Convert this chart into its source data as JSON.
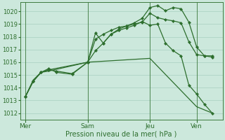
{
  "background_color": "#cce8dc",
  "grid_color": "#a8cfc0",
  "line_color": "#2d6e2d",
  "xlabel": "Pression niveau de la mer( hPa )",
  "ylim": [
    1011.5,
    1020.7
  ],
  "yticks": [
    1012,
    1013,
    1014,
    1015,
    1016,
    1017,
    1018,
    1019,
    1020
  ],
  "day_labels": [
    "Mer",
    "Sam",
    "Jeu",
    "Ven"
  ],
  "day_positions": [
    0,
    24,
    48,
    66
  ],
  "xlim": [
    -2,
    76
  ],
  "series": [
    {
      "x": [
        0,
        3,
        6,
        9,
        12,
        18,
        24,
        27,
        30,
        33,
        36,
        39,
        42,
        45,
        48,
        51,
        54,
        57,
        60,
        63,
        66,
        69,
        72
      ],
      "y": [
        1013.3,
        1014.5,
        1015.2,
        1015.4,
        1015.3,
        1015.1,
        1016.0,
        1016.9,
        1017.5,
        1018.2,
        1018.6,
        1018.85,
        1019.1,
        1019.45,
        1020.3,
        1020.45,
        1020.05,
        1020.3,
        1020.2,
        1019.15,
        1017.2,
        1016.5,
        1016.5
      ],
      "marker": true
    },
    {
      "x": [
        0,
        3,
        6,
        9,
        12,
        18,
        24,
        27,
        30,
        33,
        36,
        39,
        42,
        45,
        48,
        51,
        54,
        57,
        60,
        63,
        66,
        69,
        72
      ],
      "y": [
        1013.3,
        1014.5,
        1015.2,
        1015.5,
        1015.2,
        1015.05,
        1016.0,
        1017.8,
        1018.2,
        1018.5,
        1018.75,
        1018.85,
        1019.0,
        1019.15,
        1019.85,
        1019.5,
        1019.35,
        1019.25,
        1019.1,
        1017.6,
        1016.6,
        1016.5,
        1016.4
      ],
      "marker": true
    },
    {
      "x": [
        0,
        3,
        6,
        9,
        24,
        27,
        30,
        33,
        36,
        39,
        42,
        45,
        48,
        51,
        54,
        57,
        60,
        63,
        66,
        69,
        72
      ],
      "y": [
        1013.3,
        1014.5,
        1015.2,
        1015.4,
        1016.0,
        1018.3,
        1017.5,
        1018.2,
        1018.5,
        1018.7,
        1018.9,
        1019.2,
        1018.9,
        1019.0,
        1017.5,
        1016.9,
        1016.5,
        1014.2,
        1013.5,
        1012.7,
        1012.0
      ],
      "marker": true
    },
    {
      "x": [
        0,
        3,
        6,
        9,
        24,
        48,
        66,
        72
      ],
      "y": [
        1013.3,
        1014.6,
        1015.2,
        1015.3,
        1016.0,
        1016.3,
        1012.5,
        1012.0
      ],
      "marker": false
    }
  ]
}
